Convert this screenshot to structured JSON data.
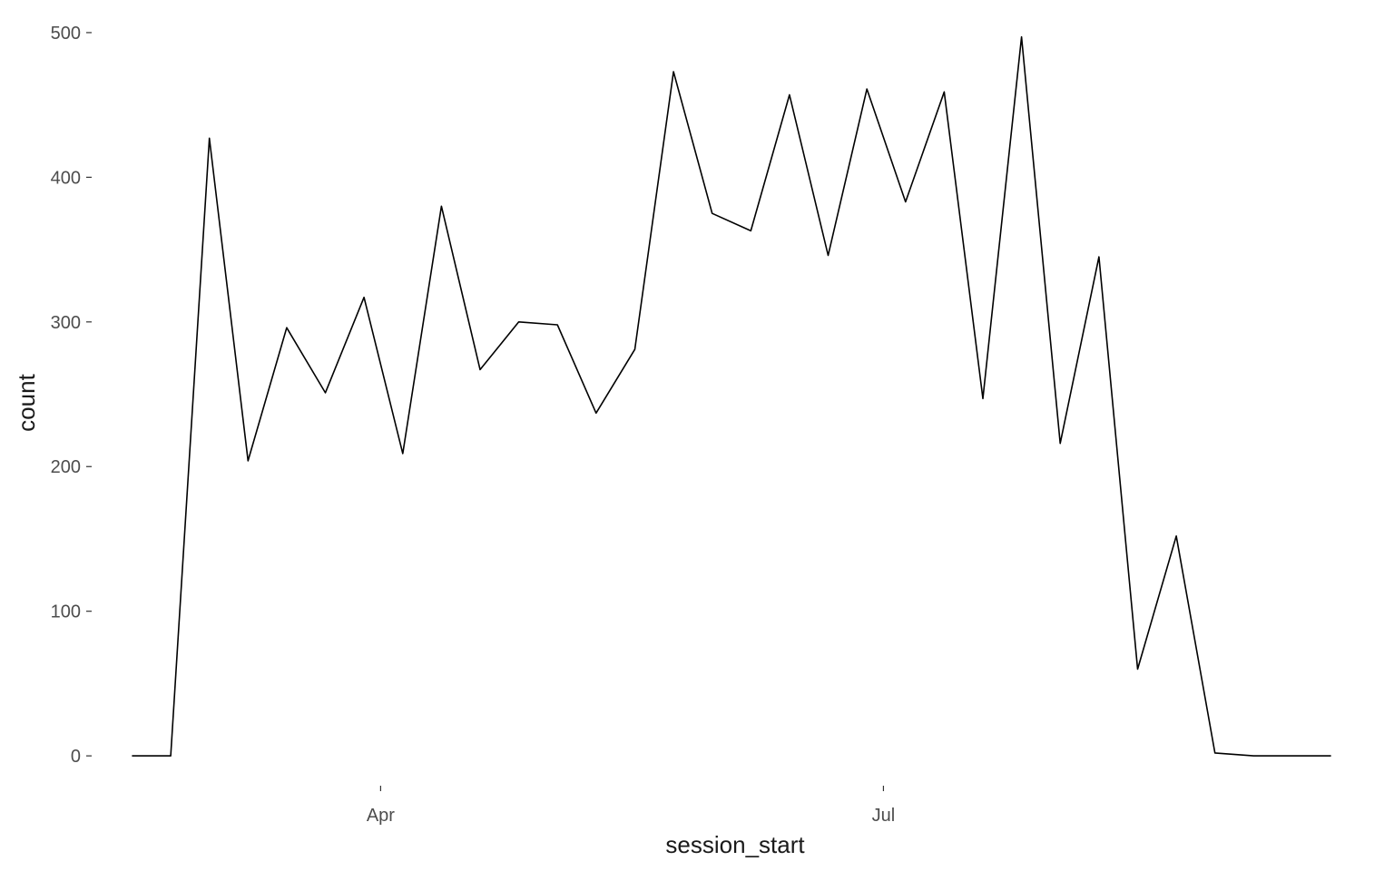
{
  "chart_data": {
    "type": "line",
    "xlabel": "session_start",
    "ylabel": "count",
    "x_tick_labels": [
      "Apr",
      "Jul"
    ],
    "y_tick_labels": [
      "0",
      "100",
      "200",
      "300",
      "400",
      "500"
    ],
    "y_ticks": [
      0,
      100,
      200,
      300,
      400,
      500
    ],
    "ylim": [
      -20,
      510
    ],
    "grid": false,
    "legend": "none",
    "line_color": "#000000",
    "x_scale": "weekly dates",
    "x_ticks": [
      "2020-04-01",
      "2020-07-01"
    ],
    "xlim": [
      "2020-02-11",
      "2020-09-25"
    ],
    "x": [
      "2020-02-16",
      "2020-02-23",
      "2020-03-01",
      "2020-03-08",
      "2020-03-15",
      "2020-03-22",
      "2020-03-29",
      "2020-04-05",
      "2020-04-12",
      "2020-04-19",
      "2020-04-26",
      "2020-05-03",
      "2020-05-10",
      "2020-05-17",
      "2020-05-24",
      "2020-05-31",
      "2020-06-07",
      "2020-06-14",
      "2020-06-21",
      "2020-06-28",
      "2020-07-05",
      "2020-07-12",
      "2020-07-19",
      "2020-07-26",
      "2020-08-02",
      "2020-08-09",
      "2020-08-16",
      "2020-08-23",
      "2020-08-30",
      "2020-09-06",
      "2020-09-13",
      "2020-09-20"
    ],
    "y": [
      0,
      0,
      427,
      204,
      296,
      251,
      317,
      209,
      380,
      267,
      300,
      298,
      237,
      281,
      473,
      375,
      363,
      457,
      346,
      461,
      383,
      459,
      247,
      497,
      216,
      345,
      60,
      152,
      2,
      0,
      0,
      0
    ]
  }
}
